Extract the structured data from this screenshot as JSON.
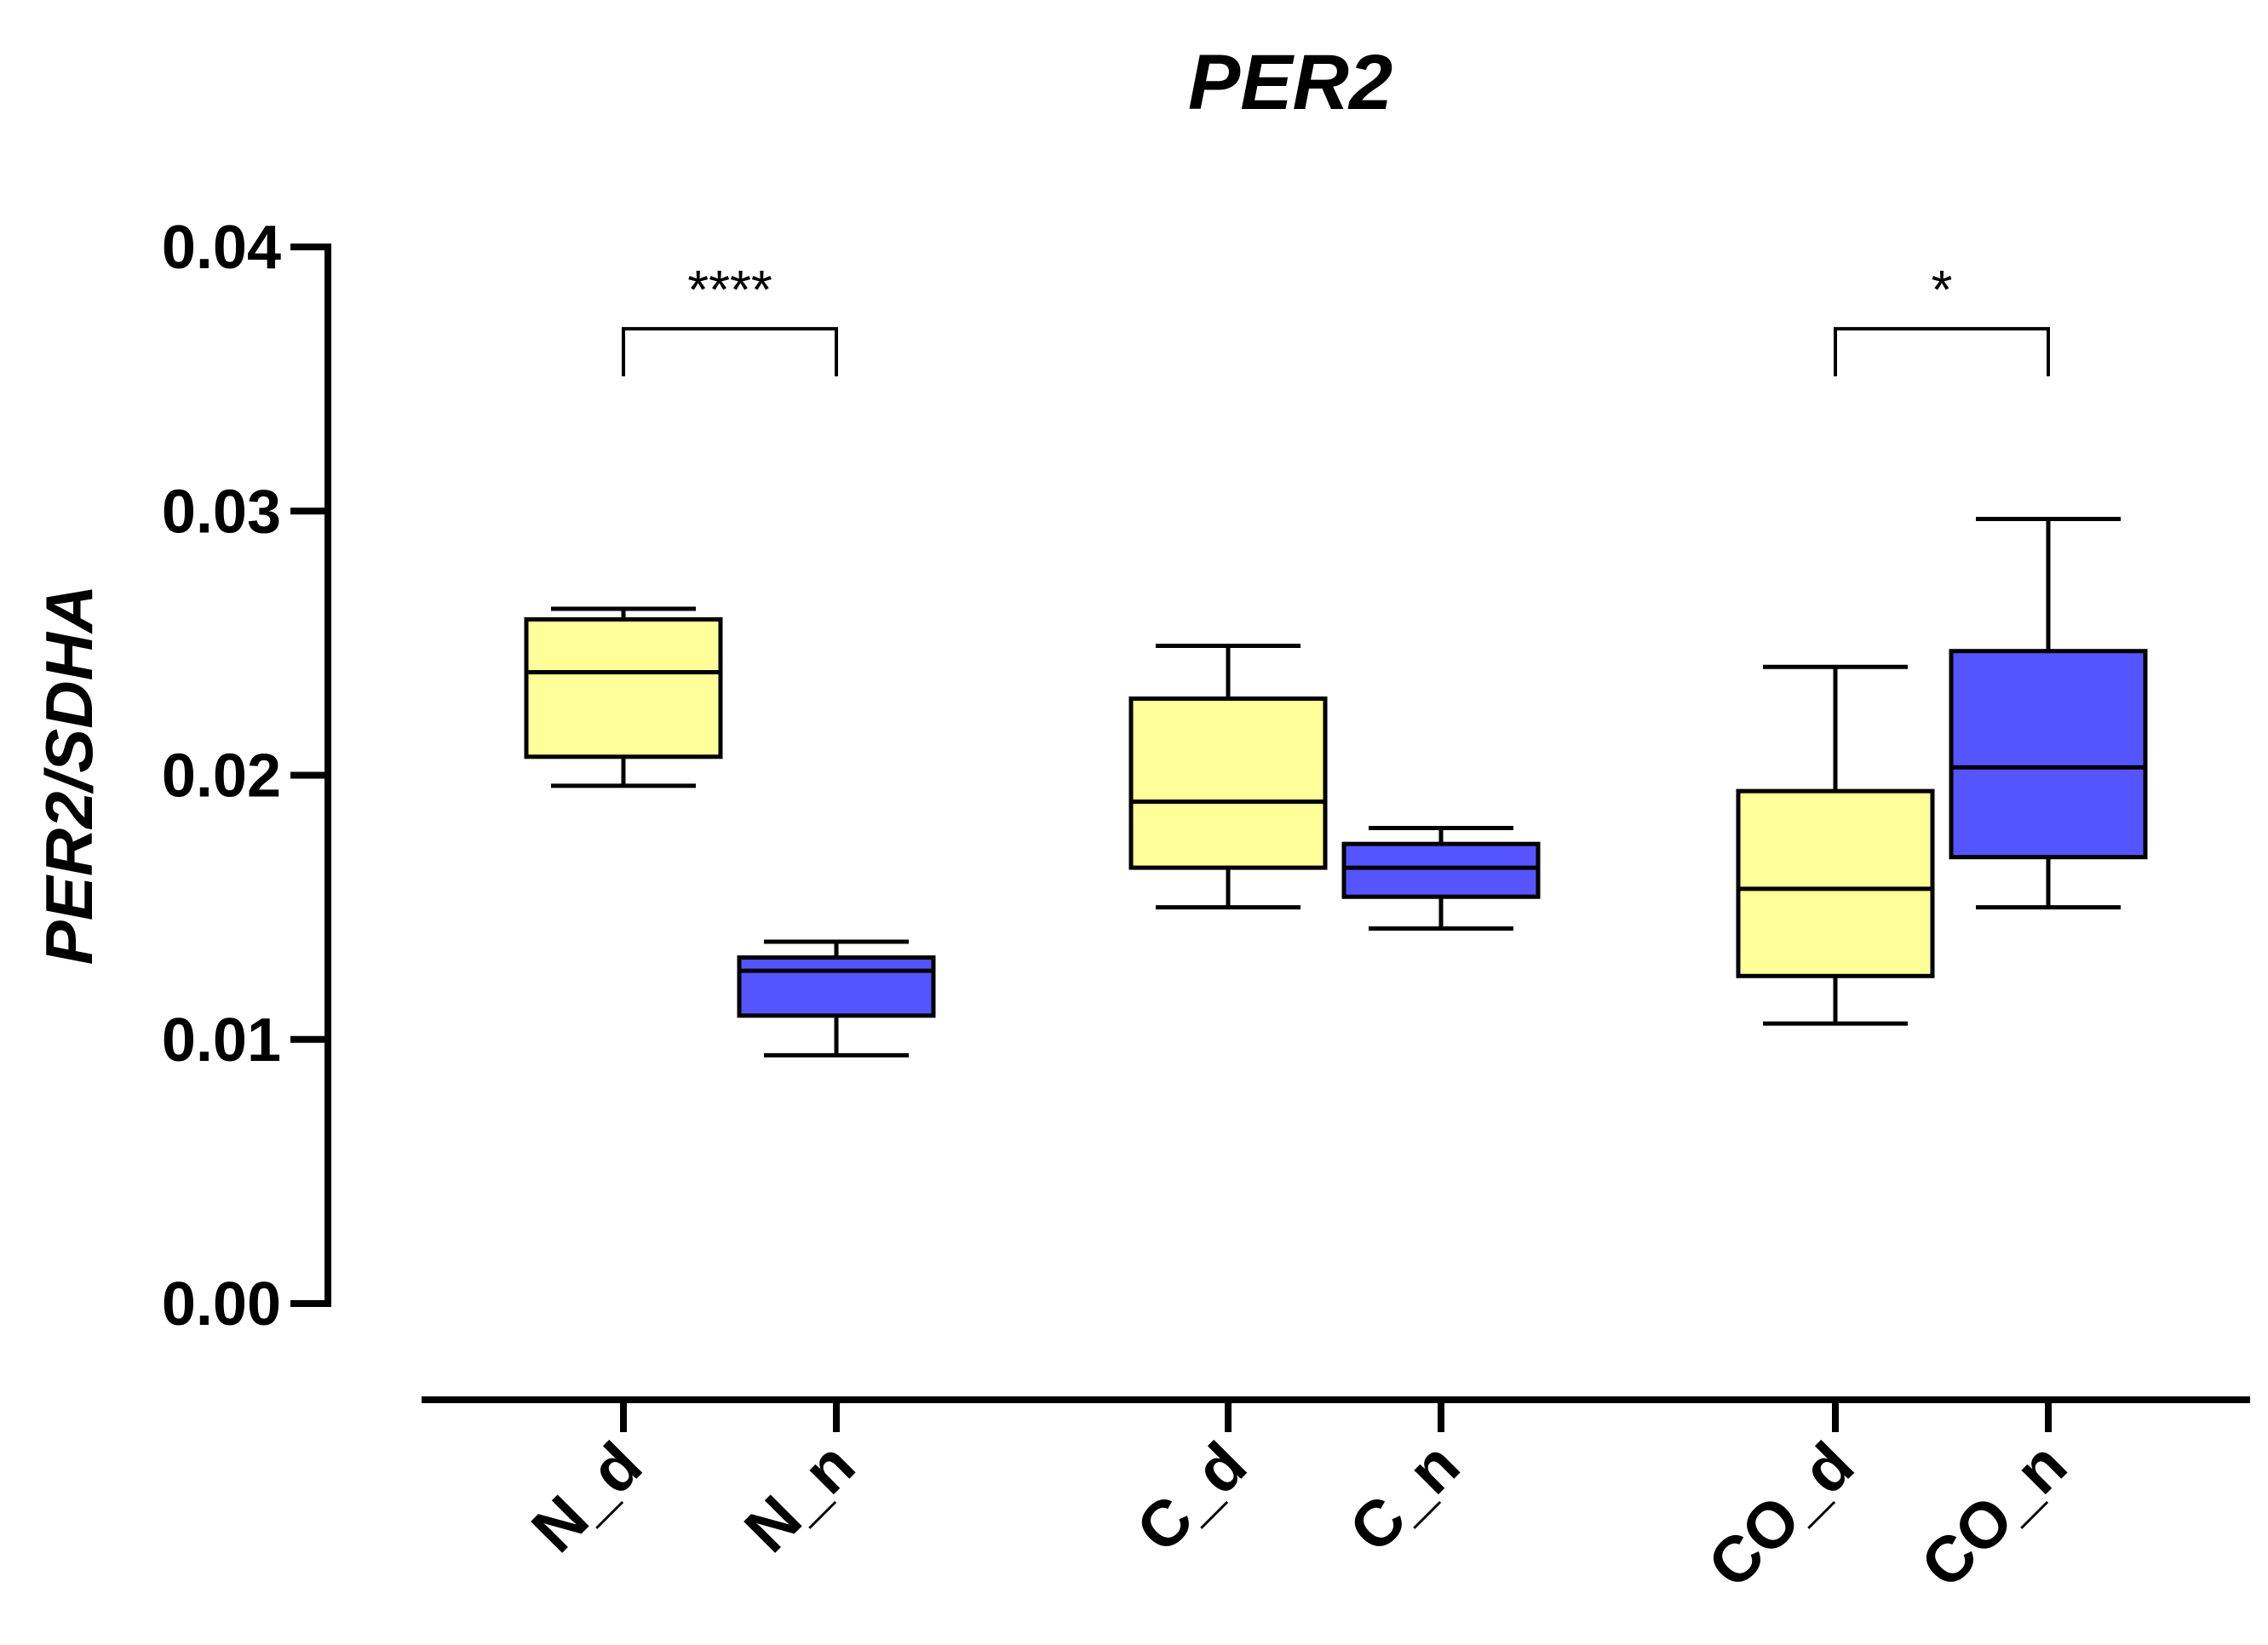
{
  "chart_data": {
    "type": "box",
    "title": "PER2",
    "xlabel": "",
    "ylabel": "PER2/SDHA",
    "ylim": [
      0,
      0.04
    ],
    "yticks": [
      "0.00",
      "0.01",
      "0.02",
      "0.03",
      "0.04"
    ],
    "ytick_values": [
      0,
      0.01,
      0.02,
      0.03,
      0.04
    ],
    "colors": {
      "day": "#FFFF99",
      "night": "#5555FF"
    },
    "categories": [
      "N_d",
      "N_n",
      "C_d",
      "C_n",
      "CO_d",
      "CO_n"
    ],
    "boxes": [
      {
        "label": "N_d",
        "color": "#FFFF99",
        "min": 0.0196,
        "q1": 0.0207,
        "median": 0.0239,
        "q3": 0.0259,
        "max": 0.0263
      },
      {
        "label": "N_n",
        "color": "#5555FF",
        "min": 0.0094,
        "q1": 0.0109,
        "median": 0.0126,
        "q3": 0.0131,
        "max": 0.0137
      },
      {
        "label": "C_d",
        "color": "#FFFF99",
        "min": 0.015,
        "q1": 0.0165,
        "median": 0.019,
        "q3": 0.0229,
        "max": 0.0249
      },
      {
        "label": "C_n",
        "color": "#5555FF",
        "min": 0.0142,
        "q1": 0.0154,
        "median": 0.0165,
        "q3": 0.0174,
        "max": 0.018
      },
      {
        "label": "CO_d",
        "color": "#FFFF99",
        "min": 0.0106,
        "q1": 0.0124,
        "median": 0.0157,
        "q3": 0.0194,
        "max": 0.0241
      },
      {
        "label": "CO_n",
        "color": "#5555FF",
        "min": 0.015,
        "q1": 0.0169,
        "median": 0.0203,
        "q3": 0.0247,
        "max": 0.0297
      }
    ],
    "significance": [
      {
        "from": "N_d",
        "to": "N_n",
        "label": "****",
        "level": 0.0369,
        "base": 0.0351
      },
      {
        "from": "CO_d",
        "to": "CO_n",
        "label": "*",
        "level": 0.0369,
        "base": 0.0351
      }
    ]
  }
}
